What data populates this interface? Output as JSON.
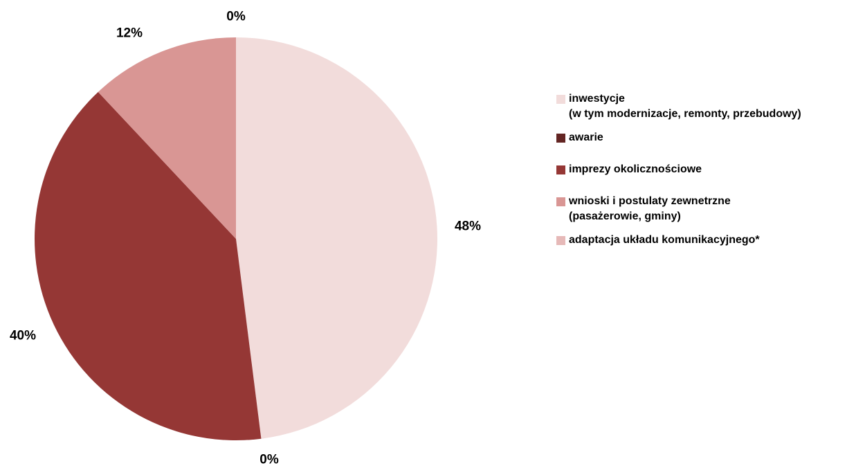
{
  "chart_data": {
    "type": "pie",
    "slices": [
      {
        "name": "inwestycje\n(w tym modernizacje, remonty, przebudowy)",
        "value": 48,
        "label": "48%",
        "color": "#F2DCDB"
      },
      {
        "name": "awarie",
        "value": 0,
        "label": "0%",
        "color": "#632523"
      },
      {
        "name": "imprezy okolicznościowe",
        "value": 40,
        "label": "40%",
        "color": "#953735"
      },
      {
        "name": "wnioski i postulaty zewnetrzne\n(pasażerowie, gminy)",
        "value": 12,
        "label": "12%",
        "color": "#D99694"
      },
      {
        "name": "adaptacja układu komunikacyjnego*",
        "value": 0,
        "label": "0%",
        "color": "#E6B9B8"
      }
    ],
    "legend_position": "right"
  }
}
